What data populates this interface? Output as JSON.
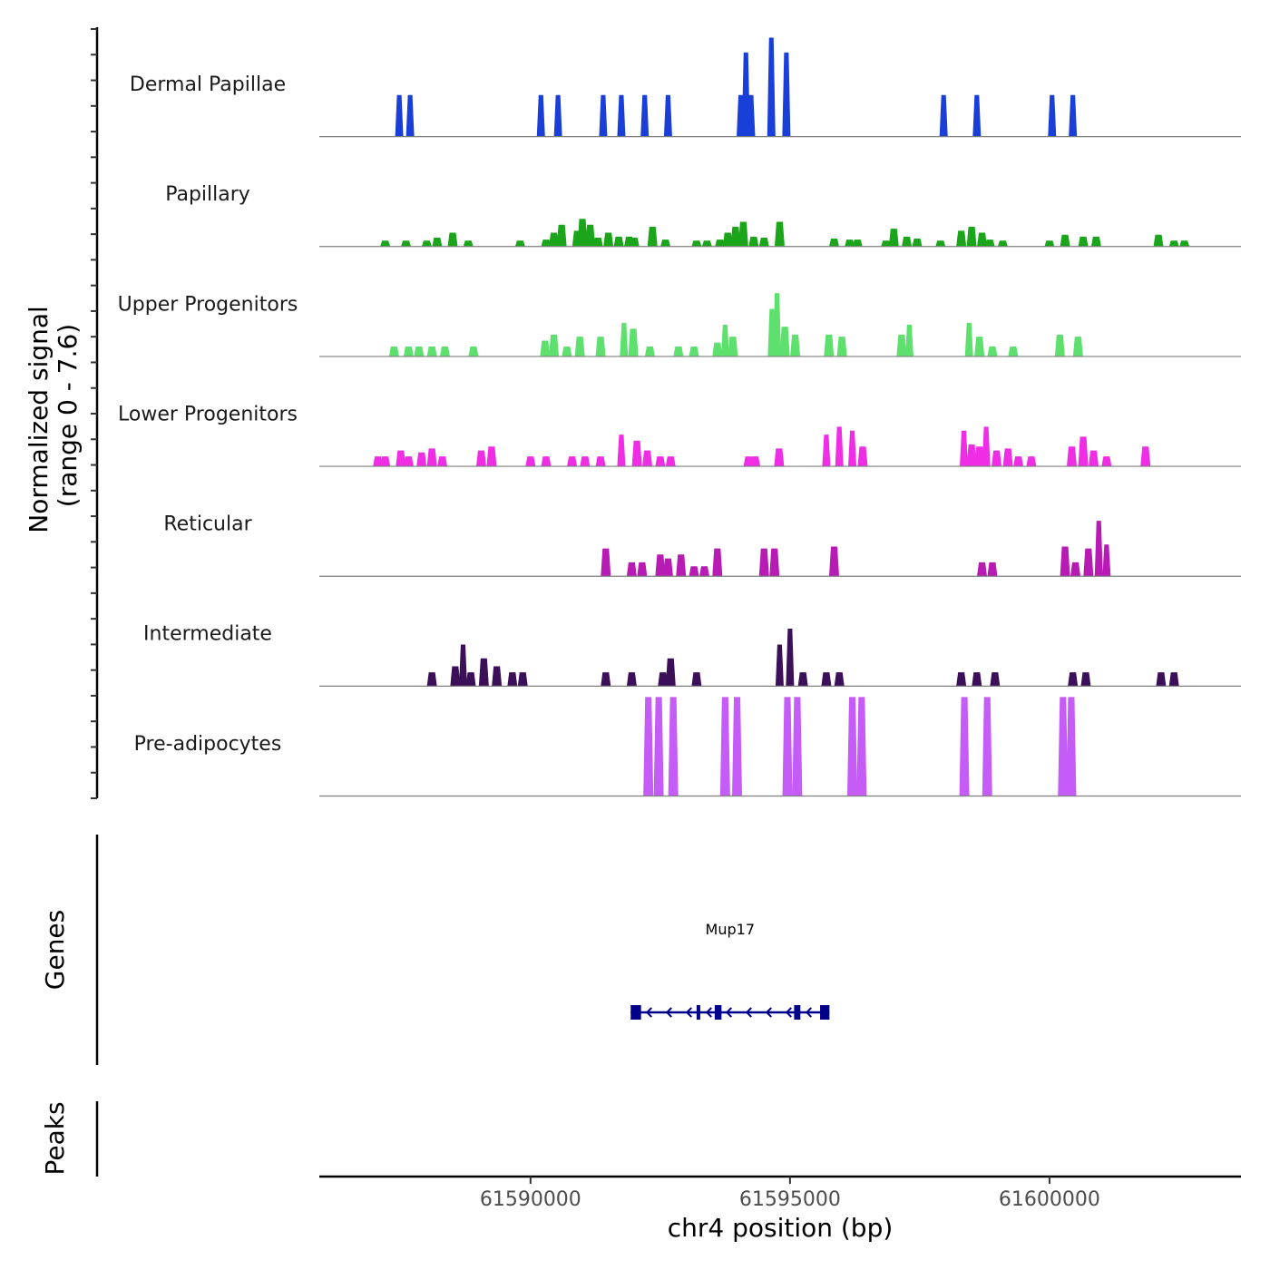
{
  "chart_data": {
    "type": "area",
    "title": "",
    "xlabel": "chr4 position (bp)",
    "ylabel": "Normalized signal\n(range 0 - 7.6)",
    "ylabel_lines": [
      "Normalized signal",
      "(range 0 - 7.6)"
    ],
    "y_range": [
      0,
      7.6
    ],
    "xlim": [
      61585930,
      61603690
    ],
    "x_ticks": [
      61590000,
      61595000,
      61600000
    ],
    "x_tick_labels": [
      "61590000",
      "61595000",
      "61600000"
    ],
    "grid": false,
    "legend": "none",
    "tracks": [
      {
        "name": "Dermal Papillae",
        "color": "#1a3fd9",
        "peaks": [
          [
            61587470,
            0.42
          ],
          [
            61587680,
            0.42
          ],
          [
            61590200,
            0.42
          ],
          [
            61590530,
            0.42
          ],
          [
            61591400,
            0.42
          ],
          [
            61591750,
            0.42
          ],
          [
            61592200,
            0.42
          ],
          [
            61592650,
            0.42
          ],
          [
            61594050,
            0.42
          ],
          [
            61594150,
            0.85
          ],
          [
            61594250,
            0.42
          ],
          [
            61594640,
            1.0
          ],
          [
            61594930,
            0.85
          ],
          [
            61597960,
            0.42
          ],
          [
            61598600,
            0.42
          ],
          [
            61600050,
            0.42
          ],
          [
            61600450,
            0.42
          ]
        ]
      },
      {
        "name": "Papillary",
        "color": "#1aa51a",
        "peaks": [
          [
            61587200,
            0.06
          ],
          [
            61587600,
            0.06
          ],
          [
            61588000,
            0.06
          ],
          [
            61588200,
            0.09
          ],
          [
            61588500,
            0.14
          ],
          [
            61588800,
            0.06
          ],
          [
            61589800,
            0.06
          ],
          [
            61590300,
            0.07
          ],
          [
            61590450,
            0.14
          ],
          [
            61590600,
            0.22
          ],
          [
            61590900,
            0.16
          ],
          [
            61591000,
            0.28
          ],
          [
            61591150,
            0.22
          ],
          [
            61591300,
            0.09
          ],
          [
            61591500,
            0.14
          ],
          [
            61591700,
            0.1
          ],
          [
            61591900,
            0.1
          ],
          [
            61592000,
            0.09
          ],
          [
            61592350,
            0.2
          ],
          [
            61592600,
            0.07
          ],
          [
            61593200,
            0.06
          ],
          [
            61593400,
            0.06
          ],
          [
            61593650,
            0.07
          ],
          [
            61593800,
            0.14
          ],
          [
            61593950,
            0.2
          ],
          [
            61594100,
            0.25
          ],
          [
            61594300,
            0.1
          ],
          [
            61594500,
            0.09
          ],
          [
            61594800,
            0.25
          ],
          [
            61595850,
            0.08
          ],
          [
            61596150,
            0.07
          ],
          [
            61596300,
            0.07
          ],
          [
            61596850,
            0.06
          ],
          [
            61597000,
            0.18
          ],
          [
            61597250,
            0.1
          ],
          [
            61597450,
            0.08
          ],
          [
            61597900,
            0.06
          ],
          [
            61598300,
            0.16
          ],
          [
            61598500,
            0.2
          ],
          [
            61598700,
            0.14
          ],
          [
            61598850,
            0.07
          ],
          [
            61599100,
            0.06
          ],
          [
            61600000,
            0.06
          ],
          [
            61600300,
            0.12
          ],
          [
            61600650,
            0.1
          ],
          [
            61600900,
            0.1
          ],
          [
            61602100,
            0.12
          ],
          [
            61602400,
            0.06
          ],
          [
            61602600,
            0.06
          ]
        ]
      },
      {
        "name": "Upper Progenitors",
        "color": "#5ee06e",
        "peaks": [
          [
            61587370,
            0.1
          ],
          [
            61587650,
            0.1
          ],
          [
            61587850,
            0.1
          ],
          [
            61588100,
            0.1
          ],
          [
            61588350,
            0.1
          ],
          [
            61588900,
            0.1
          ],
          [
            61590280,
            0.16
          ],
          [
            61590450,
            0.22
          ],
          [
            61590700,
            0.1
          ],
          [
            61590950,
            0.2
          ],
          [
            61591350,
            0.2
          ],
          [
            61591800,
            0.34
          ],
          [
            61591980,
            0.28
          ],
          [
            61592300,
            0.1
          ],
          [
            61592850,
            0.1
          ],
          [
            61593150,
            0.1
          ],
          [
            61593600,
            0.14
          ],
          [
            61593750,
            0.32
          ],
          [
            61593900,
            0.2
          ],
          [
            61594650,
            0.48
          ],
          [
            61594750,
            0.64
          ],
          [
            61594900,
            0.3
          ],
          [
            61595100,
            0.22
          ],
          [
            61595750,
            0.22
          ],
          [
            61596000,
            0.2
          ],
          [
            61597150,
            0.22
          ],
          [
            61597300,
            0.32
          ],
          [
            61598450,
            0.34
          ],
          [
            61598650,
            0.2
          ],
          [
            61598900,
            0.1
          ],
          [
            61599300,
            0.1
          ],
          [
            61600200,
            0.22
          ],
          [
            61600550,
            0.2
          ]
        ]
      },
      {
        "name": "Lower Progenitors",
        "color": "#ee2de4",
        "peaks": [
          [
            61587060,
            0.1
          ],
          [
            61587200,
            0.1
          ],
          [
            61587500,
            0.16
          ],
          [
            61587650,
            0.1
          ],
          [
            61587900,
            0.14
          ],
          [
            61588100,
            0.18
          ],
          [
            61588300,
            0.1
          ],
          [
            61589050,
            0.16
          ],
          [
            61589250,
            0.2
          ],
          [
            61590000,
            0.1
          ],
          [
            61590300,
            0.1
          ],
          [
            61590800,
            0.1
          ],
          [
            61591050,
            0.1
          ],
          [
            61591350,
            0.1
          ],
          [
            61591750,
            0.32
          ],
          [
            61592050,
            0.26
          ],
          [
            61592250,
            0.16
          ],
          [
            61592500,
            0.1
          ],
          [
            61592700,
            0.1
          ],
          [
            61594200,
            0.1
          ],
          [
            61594330,
            0.1
          ],
          [
            61594790,
            0.18
          ],
          [
            61595700,
            0.32
          ],
          [
            61595950,
            0.4
          ],
          [
            61596200,
            0.36
          ],
          [
            61596400,
            0.2
          ],
          [
            61598350,
            0.36
          ],
          [
            61598500,
            0.22
          ],
          [
            61598650,
            0.2
          ],
          [
            61598780,
            0.4
          ],
          [
            61598980,
            0.16
          ],
          [
            61599200,
            0.18
          ],
          [
            61599400,
            0.1
          ],
          [
            61599650,
            0.1
          ],
          [
            61600430,
            0.2
          ],
          [
            61600650,
            0.3
          ],
          [
            61600850,
            0.16
          ],
          [
            61601100,
            0.1
          ],
          [
            61601850,
            0.2
          ]
        ]
      },
      {
        "name": "Reticular",
        "color": "#b81ab4",
        "peaks": [
          [
            61591450,
            0.28
          ],
          [
            61591950,
            0.14
          ],
          [
            61592150,
            0.14
          ],
          [
            61592500,
            0.22
          ],
          [
            61592650,
            0.18
          ],
          [
            61592900,
            0.22
          ],
          [
            61593150,
            0.1
          ],
          [
            61593350,
            0.1
          ],
          [
            61593600,
            0.28
          ],
          [
            61594500,
            0.28
          ],
          [
            61594700,
            0.28
          ],
          [
            61595850,
            0.3
          ],
          [
            61598700,
            0.14
          ],
          [
            61598900,
            0.14
          ],
          [
            61600300,
            0.3
          ],
          [
            61600500,
            0.14
          ],
          [
            61600750,
            0.28
          ],
          [
            61600950,
            0.56
          ],
          [
            61601100,
            0.32
          ]
        ]
      },
      {
        "name": "Intermediate",
        "color": "#3c1059",
        "peaks": [
          [
            61588100,
            0.14
          ],
          [
            61588550,
            0.2
          ],
          [
            61588700,
            0.42
          ],
          [
            61588850,
            0.14
          ],
          [
            61589100,
            0.28
          ],
          [
            61589350,
            0.2
          ],
          [
            61589650,
            0.14
          ],
          [
            61589850,
            0.14
          ],
          [
            61591450,
            0.14
          ],
          [
            61591950,
            0.14
          ],
          [
            61592550,
            0.14
          ],
          [
            61592700,
            0.28
          ],
          [
            61593200,
            0.14
          ],
          [
            61594800,
            0.42
          ],
          [
            61595000,
            0.58
          ],
          [
            61595250,
            0.14
          ],
          [
            61595700,
            0.14
          ],
          [
            61595950,
            0.14
          ],
          [
            61598300,
            0.14
          ],
          [
            61598600,
            0.14
          ],
          [
            61598950,
            0.14
          ],
          [
            61600450,
            0.14
          ],
          [
            61600700,
            0.14
          ],
          [
            61602150,
            0.14
          ],
          [
            61602400,
            0.14
          ]
        ]
      },
      {
        "name": "Pre-adipocytes",
        "color": "#c65cf7",
        "peaks": [
          [
            61592270,
            1.0
          ],
          [
            61592470,
            1.0
          ],
          [
            61592750,
            1.0
          ],
          [
            61593750,
            1.0
          ],
          [
            61593980,
            1.0
          ],
          [
            61594950,
            1.0
          ],
          [
            61595140,
            1.0
          ],
          [
            61596200,
            1.0
          ],
          [
            61596380,
            1.0
          ],
          [
            61598360,
            1.0
          ],
          [
            61598800,
            1.0
          ],
          [
            61600260,
            1.0
          ],
          [
            61600420,
            1.0
          ]
        ]
      }
    ],
    "genes_panel": {
      "label": "Genes",
      "genes": [
        {
          "name": "Mup17",
          "strand": "-",
          "start": 61591930,
          "end": 61595760,
          "color": "#00008b",
          "exons": [
            [
              61591930,
              61592130
            ],
            [
              61593200,
              61593260
            ],
            [
              61593550,
              61593680
            ],
            [
              61595080,
              61595200
            ],
            [
              61595580,
              61595760
            ]
          ]
        }
      ]
    },
    "peaks_panel": {
      "label": "Peaks",
      "peaks": []
    }
  }
}
